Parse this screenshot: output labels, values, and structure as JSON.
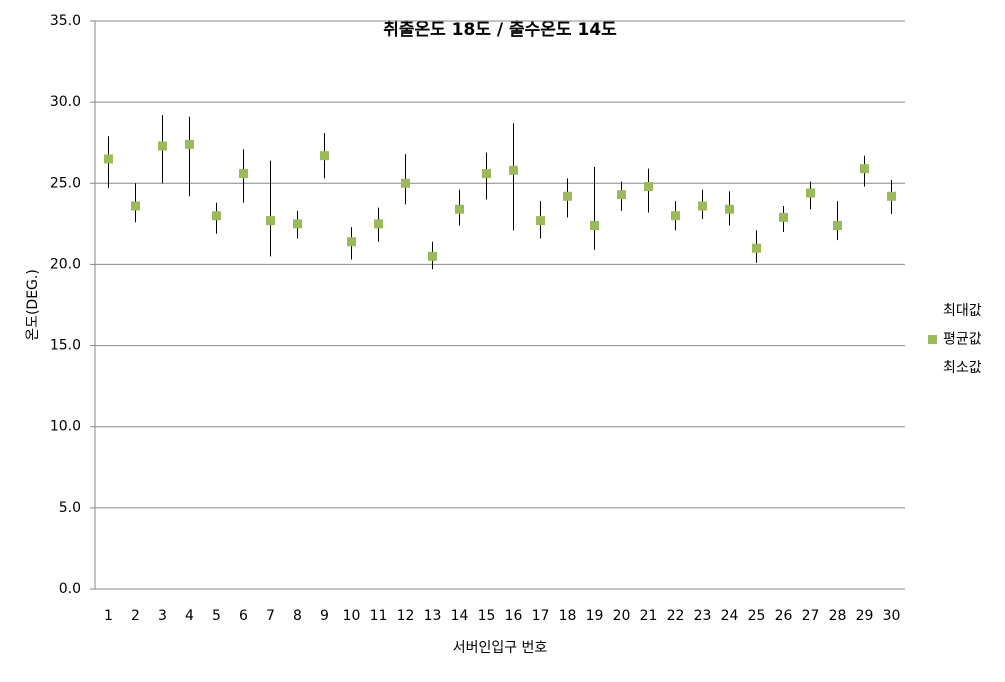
{
  "chart_data": {
    "type": "hilo",
    "title": "취출온도 18도 / 출수온도 14도",
    "x_label": "서버인입구 번호",
    "y_label": "온도(DEG.)",
    "categories": [
      "1",
      "2",
      "3",
      "4",
      "5",
      "6",
      "7",
      "8",
      "9",
      "10",
      "11",
      "12",
      "13",
      "14",
      "15",
      "16",
      "17",
      "18",
      "19",
      "20",
      "21",
      "22",
      "23",
      "24",
      "25",
      "26",
      "27",
      "28",
      "29",
      "30"
    ],
    "series": [
      {
        "name": "최대값",
        "color": "#000000",
        "marker": "none",
        "values": [
          27.9,
          25.0,
          29.2,
          29.1,
          23.8,
          27.1,
          26.4,
          23.3,
          28.1,
          22.3,
          23.5,
          26.8,
          21.4,
          24.6,
          26.9,
          28.7,
          23.9,
          25.3,
          26.0,
          25.1,
          25.9,
          23.9,
          24.6,
          24.5,
          22.1,
          23.6,
          25.1,
          23.9,
          26.7,
          25.2
        ]
      },
      {
        "name": "평균값",
        "color": "#9bbb59",
        "marker": "square",
        "values": [
          26.5,
          23.6,
          27.3,
          27.4,
          23.0,
          25.6,
          22.7,
          22.5,
          26.7,
          21.4,
          22.5,
          25.0,
          20.5,
          23.4,
          25.6,
          25.8,
          22.7,
          24.2,
          22.4,
          24.3,
          24.8,
          23.0,
          23.6,
          23.4,
          21.0,
          22.9,
          24.4,
          22.4,
          25.9,
          24.2
        ]
      },
      {
        "name": "최소값",
        "color": "#000000",
        "marker": "none",
        "values": [
          24.7,
          22.6,
          25.0,
          24.2,
          21.9,
          23.8,
          20.5,
          21.6,
          25.3,
          20.3,
          21.4,
          23.7,
          19.7,
          22.4,
          24.0,
          22.1,
          21.6,
          22.9,
          20.9,
          23.3,
          23.2,
          22.1,
          22.8,
          22.4,
          20.1,
          22.0,
          23.4,
          21.5,
          24.8,
          23.1
        ]
      }
    ],
    "ylim": [
      0,
      35
    ],
    "yticks": [
      {
        "value": 0,
        "label": "0.0"
      },
      {
        "value": 5,
        "label": "5.0"
      },
      {
        "value": 10,
        "label": "10.0"
      },
      {
        "value": 15,
        "label": "15.0"
      },
      {
        "value": 20,
        "label": "20.0"
      },
      {
        "value": 25,
        "label": "25.0"
      },
      {
        "value": 30,
        "label": "30.0"
      },
      {
        "value": 35,
        "label": "35.0"
      }
    ],
    "grid": true,
    "legend": "right"
  }
}
